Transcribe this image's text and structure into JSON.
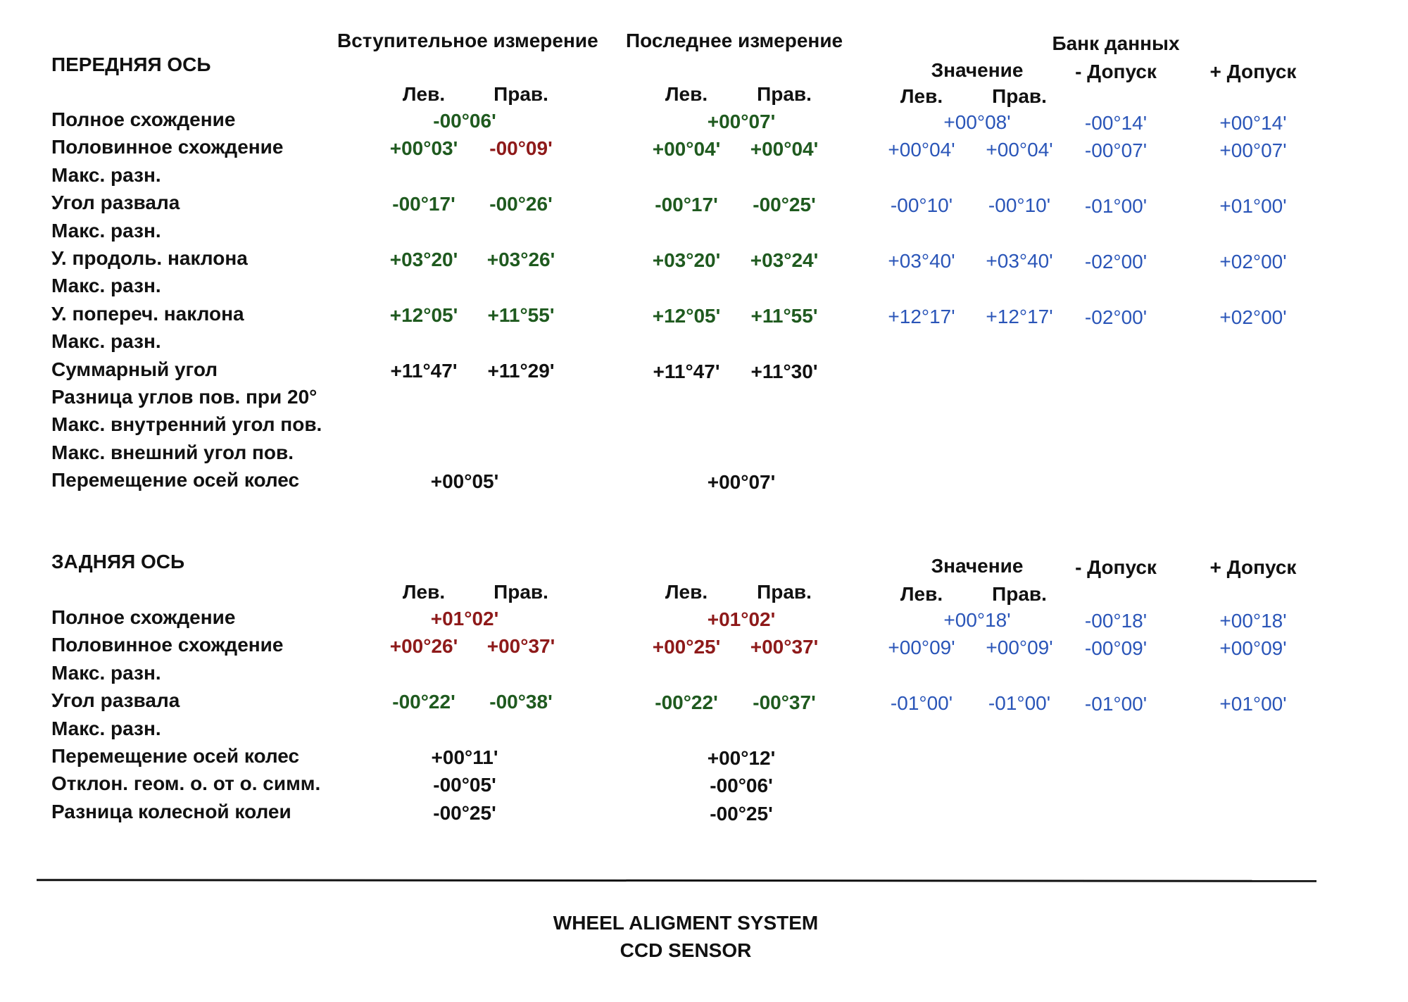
{
  "headers": {
    "intro": "Вступительное измерение",
    "last": "Последнее измерение",
    "bank": "Банк данных",
    "value": "Значение",
    "tol_minus": "- Допуск",
    "tol_plus": "+ Допуск",
    "left": "Лев.",
    "right": "Прав."
  },
  "front": {
    "title": "ПЕРЕДНЯЯ ОСЬ",
    "rows": [
      {
        "label": "Полное схождение",
        "i_total": "-00°06'",
        "i_color": "green",
        "l_total": "+00°07'",
        "l_color": "green",
        "db_total": "+00°08'",
        "db_min": "-00°14'",
        "db_max": "+00°14'"
      },
      {
        "label": "Половинное схождение",
        "i_l": "+00°03'",
        "i_l_color": "green",
        "i_r": "-00°09'",
        "i_r_color": "red",
        "l_l": "+00°04'",
        "l_l_color": "green",
        "l_r": "+00°04'",
        "l_r_color": "green",
        "db_l": "+00°04'",
        "db_r": "+00°04'",
        "db_min": "-00°07'",
        "db_max": "+00°07'"
      },
      {
        "label": "Макс. разн."
      },
      {
        "label": "Угол развала",
        "i_l": "-00°17'",
        "i_l_color": "green",
        "i_r": "-00°26'",
        "i_r_color": "green",
        "l_l": "-00°17'",
        "l_l_color": "green",
        "l_r": "-00°25'",
        "l_r_color": "green",
        "db_l": "-00°10'",
        "db_r": "-00°10'",
        "db_min": "-01°00'",
        "db_max": "+01°00'"
      },
      {
        "label": "Макс. разн."
      },
      {
        "label": "У. продоль. наклона",
        "i_l": "+03°20'",
        "i_l_color": "green",
        "i_r": "+03°26'",
        "i_r_color": "green",
        "l_l": "+03°20'",
        "l_l_color": "green",
        "l_r": "+03°24'",
        "l_r_color": "green",
        "db_l": "+03°40'",
        "db_r": "+03°40'",
        "db_min": "-02°00'",
        "db_max": "+02°00'"
      },
      {
        "label": "Макс. разн."
      },
      {
        "label": "У. попереч. наклона",
        "i_l": "+12°05'",
        "i_l_color": "green",
        "i_r": "+11°55'",
        "i_r_color": "green",
        "l_l": "+12°05'",
        "l_l_color": "green",
        "l_r": "+11°55'",
        "l_r_color": "green",
        "db_l": "+12°17'",
        "db_r": "+12°17'",
        "db_min": "-02°00'",
        "db_max": "+02°00'"
      },
      {
        "label": "Макс. разн."
      },
      {
        "label": "Суммарный угол",
        "i_l": "+11°47'",
        "i_l_color": "black",
        "i_r": "+11°29'",
        "i_r_color": "black",
        "l_l": "+11°47'",
        "l_l_color": "black",
        "l_r": "+11°30'",
        "l_r_color": "black"
      },
      {
        "label": "Разница углов пов. при 20°"
      },
      {
        "label": "Макс. внутренний угол пов."
      },
      {
        "label": "Макс. внешний угол пов."
      },
      {
        "label": "Перемещение осей колес",
        "i_total": "+00°05'",
        "i_color": "black",
        "l_total": "+00°07'",
        "l_color": "black"
      }
    ]
  },
  "rear": {
    "title": "ЗАДНЯЯ ОСЬ",
    "rows": [
      {
        "label": "Полное схождение",
        "i_total": "+01°02'",
        "i_color": "red",
        "l_total": "+01°02'",
        "l_color": "red",
        "db_total": "+00°18'",
        "db_min": "-00°18'",
        "db_max": "+00°18'"
      },
      {
        "label": "Половинное схождение",
        "i_l": "+00°26'",
        "i_l_color": "red",
        "i_r": "+00°37'",
        "i_r_color": "red",
        "l_l": "+00°25'",
        "l_l_color": "red",
        "l_r": "+00°37'",
        "l_r_color": "red",
        "db_l": "+00°09'",
        "db_r": "+00°09'",
        "db_min": "-00°09'",
        "db_max": "+00°09'"
      },
      {
        "label": "Макс. разн."
      },
      {
        "label": "Угол развала",
        "i_l": "-00°22'",
        "i_l_color": "green",
        "i_r": "-00°38'",
        "i_r_color": "green",
        "l_l": "-00°22'",
        "l_l_color": "green",
        "l_r": "-00°37'",
        "l_r_color": "green",
        "db_l": "-01°00'",
        "db_r": "-01°00'",
        "db_min": "-01°00'",
        "db_max": "+01°00'"
      },
      {
        "label": "Макс. разн."
      },
      {
        "label": "Перемещение осей колес",
        "i_total": "+00°11'",
        "i_color": "black",
        "l_total": "+00°12'",
        "l_color": "black"
      },
      {
        "label": "Отклон. геом. о. от о. симм.",
        "i_total": "-00°05'",
        "i_color": "black",
        "l_total": "-00°06'",
        "l_color": "black"
      },
      {
        "label": "Разница колесной колеи",
        "i_total": "-00°25'",
        "i_color": "black",
        "l_total": "-00°25'",
        "l_color": "black"
      }
    ]
  },
  "footer": {
    "line1": "WHEEL ALIGMENT SYSTEM",
    "line2": "CCD SENSOR"
  }
}
